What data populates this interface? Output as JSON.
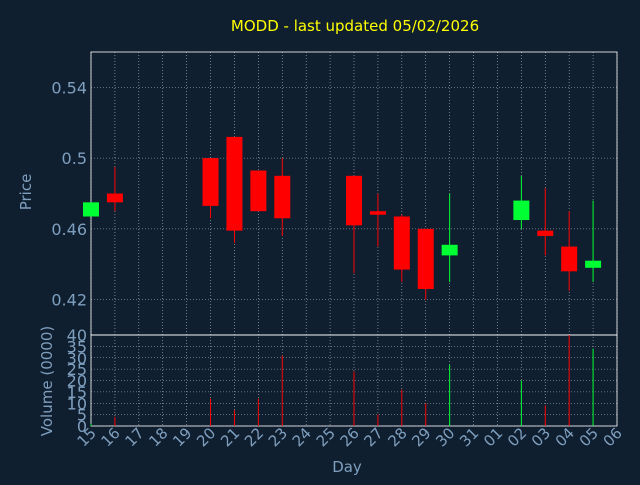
{
  "colors": {
    "background": "#0f1f2f",
    "title": "#ffff00",
    "axis_text": "#7f9fbf",
    "grid": "#ffffff",
    "up": "#00ff33",
    "down": "#ff0000",
    "frame": "#ffffff"
  },
  "chart_data": [
    {
      "type": "candlestick",
      "title": "MODD - last updated 05/02/2026",
      "ylabel": "Price",
      "ylim": [
        0.4,
        0.56
      ],
      "yticks": [
        0.42,
        0.46,
        0.5,
        0.54
      ],
      "ytick_labels": [
        "0.42",
        "0.46",
        "0.5",
        "0.54"
      ],
      "grid": true,
      "categories": [
        "15",
        "16",
        "17",
        "18",
        "19",
        "20",
        "21",
        "22",
        "23",
        "24",
        "25",
        "26",
        "27",
        "28",
        "29",
        "30",
        "31",
        "01",
        "02",
        "03",
        "04",
        "05",
        "06"
      ],
      "series": [
        {
          "values": [
            {
              "x": "15",
              "open": 0.467,
              "close": 0.475,
              "high": 0.475,
              "low": 0.467
            },
            {
              "x": "16",
              "open": 0.48,
              "close": 0.475,
              "high": 0.495,
              "low": 0.47
            },
            {
              "x": "20",
              "open": 0.5,
              "close": 0.473,
              "high": 0.5,
              "low": 0.466
            },
            {
              "x": "21",
              "open": 0.512,
              "close": 0.459,
              "high": 0.512,
              "low": 0.452
            },
            {
              "x": "22",
              "open": 0.493,
              "close": 0.47,
              "high": 0.493,
              "low": 0.47
            },
            {
              "x": "23",
              "open": 0.49,
              "close": 0.466,
              "high": 0.5,
              "low": 0.456
            },
            {
              "x": "26",
              "open": 0.49,
              "close": 0.462,
              "high": 0.49,
              "low": 0.435
            },
            {
              "x": "27",
              "open": 0.47,
              "close": 0.468,
              "high": 0.48,
              "low": 0.45
            },
            {
              "x": "28",
              "open": 0.467,
              "close": 0.437,
              "high": 0.468,
              "low": 0.43
            },
            {
              "x": "29",
              "open": 0.46,
              "close": 0.426,
              "high": 0.46,
              "low": 0.42
            },
            {
              "x": "30",
              "open": 0.445,
              "close": 0.451,
              "high": 0.48,
              "low": 0.43
            },
            {
              "x": "02",
              "open": 0.465,
              "close": 0.476,
              "high": 0.49,
              "low": 0.46
            },
            {
              "x": "03",
              "open": 0.459,
              "close": 0.456,
              "high": 0.483,
              "low": 0.445
            },
            {
              "x": "04",
              "open": 0.45,
              "close": 0.436,
              "high": 0.47,
              "low": 0.425
            },
            {
              "x": "05",
              "open": 0.438,
              "close": 0.442,
              "high": 0.476,
              "low": 0.43
            }
          ]
        }
      ]
    },
    {
      "type": "bar",
      "xlabel": "Day",
      "ylabel": "Volume (0000)",
      "ylim": [
        0,
        40
      ],
      "yticks": [
        0,
        5,
        10,
        15,
        20,
        25,
        30,
        35,
        40
      ],
      "ytick_labels": [
        "0",
        "5",
        "10",
        "15",
        "20",
        "25",
        "30",
        "35",
        "40"
      ],
      "grid": true,
      "categories": [
        "15",
        "16",
        "17",
        "18",
        "19",
        "20",
        "21",
        "22",
        "23",
        "24",
        "25",
        "26",
        "27",
        "28",
        "29",
        "30",
        "31",
        "01",
        "02",
        "03",
        "04",
        "05",
        "06"
      ],
      "series": [
        {
          "values": [
            {
              "x": "15",
              "value": 1.0,
              "dir": "up"
            },
            {
              "x": "16",
              "value": 4.0,
              "dir": "down"
            },
            {
              "x": "20",
              "value": 12.0,
              "dir": "down"
            },
            {
              "x": "21",
              "value": 7.0,
              "dir": "down"
            },
            {
              "x": "22",
              "value": 12.0,
              "dir": "down"
            },
            {
              "x": "23",
              "value": 31.0,
              "dir": "down"
            },
            {
              "x": "26",
              "value": 24.0,
              "dir": "down"
            },
            {
              "x": "27",
              "value": 5.0,
              "dir": "down"
            },
            {
              "x": "28",
              "value": 16.0,
              "dir": "down"
            },
            {
              "x": "29",
              "value": 10.0,
              "dir": "down"
            },
            {
              "x": "30",
              "value": 27.0,
              "dir": "up"
            },
            {
              "x": "02",
              "value": 20.0,
              "dir": "up"
            },
            {
              "x": "03",
              "value": 9.0,
              "dir": "down"
            },
            {
              "x": "04",
              "value": 40.0,
              "dir": "down"
            },
            {
              "x": "05",
              "value": 34.0,
              "dir": "up"
            }
          ]
        }
      ]
    }
  ]
}
